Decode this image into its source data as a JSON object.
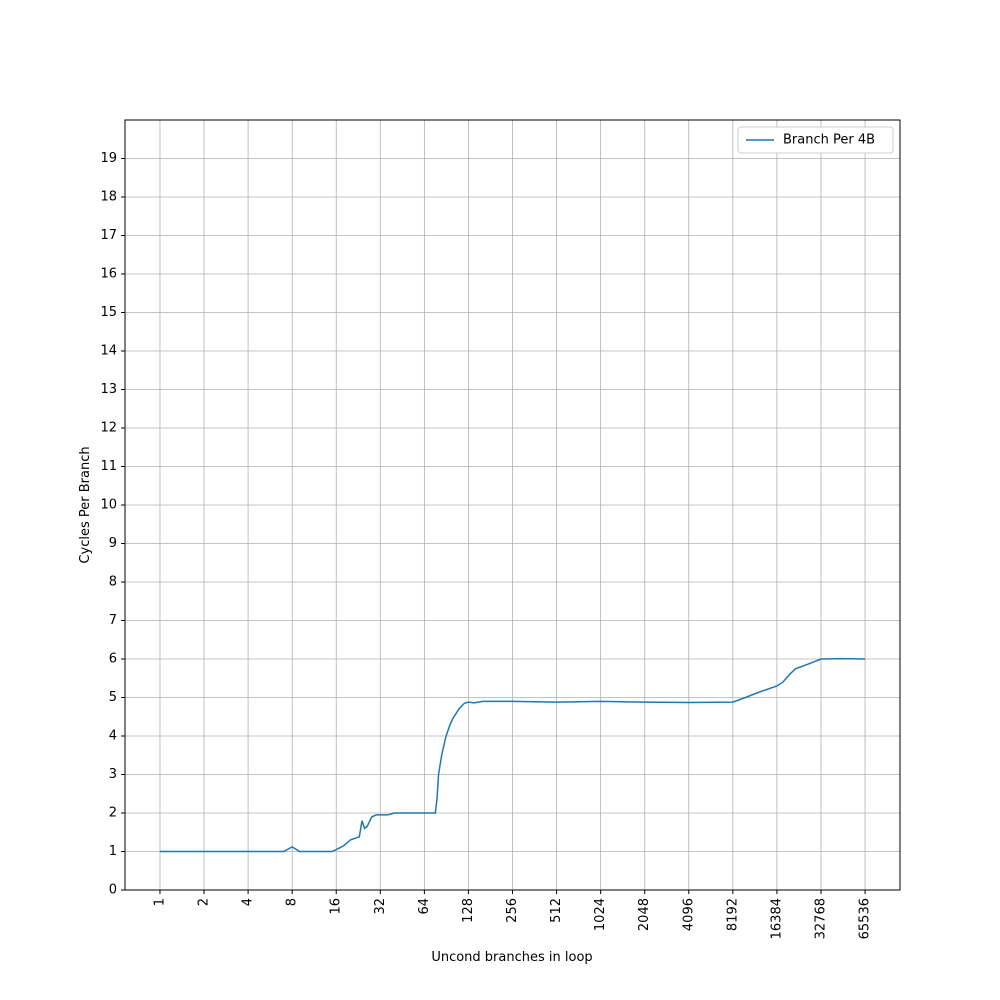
{
  "chart_data": {
    "type": "line",
    "x_label": "Uncond branches in loop",
    "y_label": "Cycles Per Branch",
    "xscale": "log",
    "xbase": 2,
    "xlim": [
      0.577,
      113543
    ],
    "ylim": [
      0,
      20
    ],
    "xticks": [
      1,
      2,
      4,
      8,
      16,
      32,
      64,
      128,
      256,
      512,
      1024,
      2048,
      4096,
      8192,
      16384,
      32768,
      65536
    ],
    "yticks": [
      0,
      1,
      2,
      3,
      4,
      5,
      6,
      7,
      8,
      9,
      10,
      11,
      12,
      13,
      14,
      15,
      16,
      17,
      18,
      19
    ],
    "grid": true,
    "legend": "upper-right",
    "x": [
      1,
      2,
      4,
      7,
      8,
      9,
      15,
      16,
      18,
      20,
      23,
      24,
      25,
      26,
      28,
      30,
      36,
      40,
      48,
      64,
      76,
      78,
      80,
      84,
      90,
      96,
      100,
      110,
      120,
      128,
      140,
      160,
      256,
      512,
      1024,
      2048,
      4096,
      8192,
      10000,
      12000,
      16384,
      18000,
      20000,
      22000,
      26000,
      32768,
      45000,
      65536
    ],
    "series": [
      {
        "name": "Branch Per 4B",
        "color": "#1f77b4",
        "values": [
          1,
          1,
          1,
          1,
          1.12,
          1,
          1,
          1.05,
          1.15,
          1.3,
          1.38,
          1.8,
          1.6,
          1.65,
          1.9,
          1.95,
          1.95,
          2,
          2,
          2,
          2,
          2.35,
          3,
          3.5,
          4,
          4.3,
          4.45,
          4.7,
          4.85,
          4.88,
          4.86,
          4.9,
          4.9,
          4.88,
          4.9,
          4.88,
          4.87,
          4.88,
          5.0,
          5.12,
          5.3,
          5.4,
          5.6,
          5.75,
          5.85,
          6,
          6.01,
          6
        ]
      }
    ]
  }
}
